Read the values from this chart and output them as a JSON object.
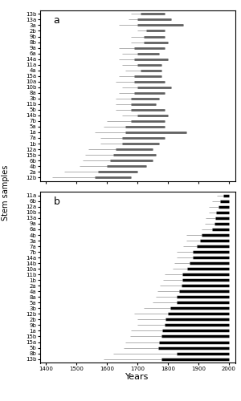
{
  "panel_a_labels": [
    "13b",
    "13a",
    "3a",
    "2b",
    "9b",
    "8b",
    "9a",
    "6a",
    "14a",
    "11a",
    "4a",
    "15a",
    "10a",
    "10b",
    "8a",
    "3b",
    "11b",
    "5b",
    "14b",
    "7b",
    "5a",
    "1a",
    "7a",
    "1b",
    "12a",
    "15b",
    "6b",
    "4b",
    "2a",
    "12b"
  ],
  "panel_a_start": [
    1680,
    1670,
    1640,
    1700,
    1680,
    1680,
    1640,
    1650,
    1640,
    1650,
    1660,
    1640,
    1630,
    1650,
    1640,
    1630,
    1630,
    1630,
    1650,
    1600,
    1590,
    1560,
    1580,
    1580,
    1540,
    1530,
    1520,
    1510,
    1460,
    1420
  ],
  "panel_a_thick_start": [
    1710,
    1700,
    1700,
    1730,
    1720,
    1720,
    1690,
    1700,
    1690,
    1700,
    1710,
    1690,
    1690,
    1700,
    1690,
    1680,
    1680,
    1680,
    1700,
    1680,
    1660,
    1660,
    1650,
    1650,
    1630,
    1620,
    1610,
    1600,
    1570,
    1560
  ],
  "panel_a_end": [
    1790,
    1810,
    1850,
    1790,
    1790,
    1800,
    1790,
    1770,
    1800,
    1780,
    1780,
    1780,
    1790,
    1810,
    1790,
    1770,
    1760,
    1790,
    1800,
    1790,
    1790,
    1860,
    1790,
    1770,
    1750,
    1760,
    1750,
    1730,
    1700,
    1680
  ],
  "panel_b_labels": [
    "11a",
    "6b",
    "12a",
    "10b",
    "13a",
    "9a",
    "6a",
    "4b",
    "3a",
    "7a",
    "7b",
    "14a",
    "14b",
    "10a",
    "11b",
    "1b",
    "2a",
    "4a",
    "8a",
    "5a",
    "3b",
    "12b",
    "2b",
    "9b",
    "1a",
    "15b",
    "15a",
    "5b",
    "8b",
    "13b"
  ],
  "panel_b_start": [
    1960,
    1945,
    1935,
    1935,
    1925,
    1920,
    1910,
    1860,
    1860,
    1850,
    1830,
    1830,
    1820,
    1815,
    1790,
    1785,
    1775,
    1765,
    1760,
    1750,
    1720,
    1690,
    1700,
    1700,
    1680,
    1675,
    1660,
    1655,
    1620,
    1590
  ],
  "panel_b_thick_start": [
    1982,
    1970,
    1965,
    1958,
    1955,
    1952,
    1945,
    1912,
    1905,
    1895,
    1882,
    1882,
    1872,
    1862,
    1848,
    1848,
    1845,
    1838,
    1830,
    1828,
    1808,
    1800,
    1792,
    1790,
    1782,
    1780,
    1772,
    1768,
    1830,
    1780
  ],
  "panel_b_end": [
    2000,
    2000,
    2000,
    2000,
    2000,
    2000,
    2000,
    2000,
    2000,
    2000,
    2000,
    2000,
    2000,
    2000,
    2000,
    2000,
    2000,
    2000,
    2000,
    2000,
    2000,
    2000,
    2000,
    2000,
    2000,
    2000,
    2000,
    2000,
    2000,
    2000
  ],
  "xlim": [
    1380,
    2020
  ],
  "xticks": [
    1400,
    1500,
    1600,
    1700,
    1800,
    1900,
    2000
  ],
  "thin_color_a": "#b0b0b0",
  "thick_color_a": "#606060",
  "thin_color_b": "#b0b0b0",
  "thick_color_b": "#000000",
  "thin_lw_a": 0.7,
  "thick_lw_a": 2.0,
  "thin_lw_b": 0.7,
  "thick_lw_b": 2.5,
  "ylabel": "Stem samples",
  "xlabel": "Years",
  "label_a": "a",
  "label_b": "b",
  "tick_fontsize": 5.0,
  "axis_label_fontsize": 7,
  "xlabel_fontsize": 8
}
